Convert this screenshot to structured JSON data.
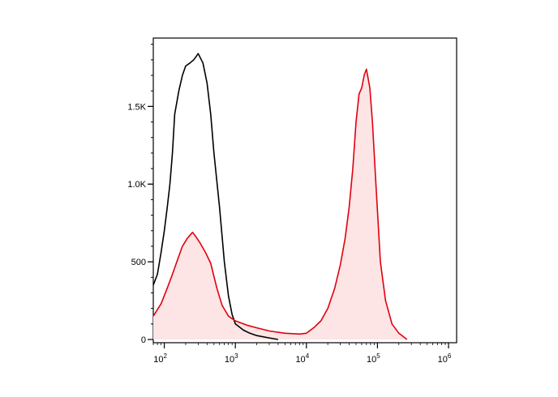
{
  "chart_data": {
    "type": "area",
    "title": "",
    "xlabel": "",
    "ylabel": "",
    "x_scale": "log",
    "xlim": [
      70,
      1300000
    ],
    "ylim": [
      0,
      1940
    ],
    "grid": false,
    "legend": "none",
    "x_tick_labels": [
      {
        "base": "10",
        "exp": "2",
        "value": 100
      },
      {
        "base": "10",
        "exp": "3",
        "value": 1000
      },
      {
        "base": "10",
        "exp": "4",
        "value": 10000
      },
      {
        "base": "10",
        "exp": "5",
        "value": 100000
      },
      {
        "base": "10",
        "exp": "6",
        "value": 1000000
      }
    ],
    "y_tick_labels": [
      {
        "label": "0",
        "value": 0
      },
      {
        "label": "500",
        "value": 500
      },
      {
        "label": "1.0K",
        "value": 1000
      },
      {
        "label": "1.5K",
        "value": 1500
      }
    ],
    "series": [
      {
        "color": "#000000",
        "fill": "none",
        "points": [
          [
            70,
            350
          ],
          [
            80,
            420
          ],
          [
            90,
            560
          ],
          [
            100,
            700
          ],
          [
            110,
            850
          ],
          [
            120,
            1000
          ],
          [
            130,
            1200
          ],
          [
            140,
            1450
          ],
          [
            160,
            1600
          ],
          [
            180,
            1700
          ],
          [
            200,
            1760
          ],
          [
            230,
            1780
          ],
          [
            260,
            1800
          ],
          [
            300,
            1840
          ],
          [
            350,
            1780
          ],
          [
            400,
            1650
          ],
          [
            450,
            1450
          ],
          [
            500,
            1200
          ],
          [
            600,
            850
          ],
          [
            700,
            500
          ],
          [
            800,
            280
          ],
          [
            900,
            160
          ],
          [
            1000,
            100
          ],
          [
            1300,
            60
          ],
          [
            1600,
            40
          ],
          [
            2000,
            25
          ],
          [
            3000,
            10
          ],
          [
            4000,
            0
          ]
        ]
      },
      {
        "color": "#e0000d",
        "fill": "#fde4e5",
        "points": [
          [
            70,
            150
          ],
          [
            90,
            230
          ],
          [
            110,
            330
          ],
          [
            130,
            420
          ],
          [
            150,
            500
          ],
          [
            180,
            600
          ],
          [
            210,
            650
          ],
          [
            250,
            690
          ],
          [
            280,
            660
          ],
          [
            320,
            620
          ],
          [
            380,
            560
          ],
          [
            450,
            490
          ],
          [
            550,
            330
          ],
          [
            650,
            220
          ],
          [
            800,
            150
          ],
          [
            1000,
            120
          ],
          [
            1500,
            90
          ],
          [
            2000,
            75
          ],
          [
            3000,
            55
          ],
          [
            5000,
            40
          ],
          [
            8000,
            35
          ],
          [
            10000,
            40
          ],
          [
            13000,
            80
          ],
          [
            16000,
            120
          ],
          [
            20000,
            200
          ],
          [
            25000,
            330
          ],
          [
            30000,
            480
          ],
          [
            35000,
            650
          ],
          [
            40000,
            850
          ],
          [
            45000,
            1100
          ],
          [
            50000,
            1400
          ],
          [
            55000,
            1580
          ],
          [
            60000,
            1620
          ],
          [
            65000,
            1700
          ],
          [
            70000,
            1740
          ],
          [
            78000,
            1620
          ],
          [
            85000,
            1400
          ],
          [
            95000,
            1000
          ],
          [
            110000,
            500
          ],
          [
            130000,
            250
          ],
          [
            160000,
            100
          ],
          [
            200000,
            40
          ],
          [
            260000,
            0
          ]
        ]
      }
    ]
  }
}
